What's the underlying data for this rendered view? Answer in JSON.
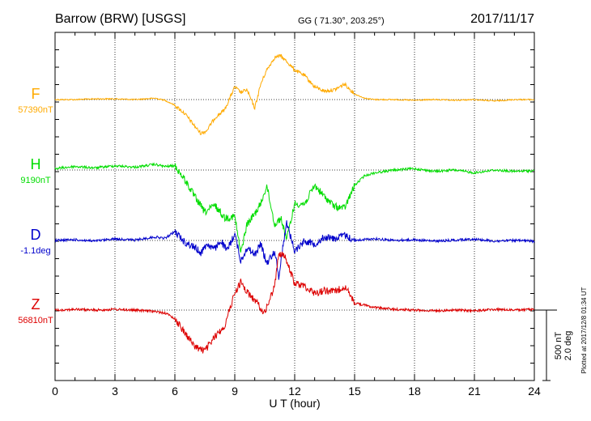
{
  "header": {
    "station": "Barrow (BRW)  [USGS]",
    "coords": "GG ( 71.30°, 203.25°)",
    "date": "2017/11/17"
  },
  "side_note": "Plotted at 2017/12/8 01:34  UT",
  "scale": {
    "line1": "500 nT",
    "line2": "2.0 deg"
  },
  "colors": {
    "F": "#ffaa00",
    "H": "#00dd00",
    "D": "#0000cc",
    "Z": "#dd0000"
  },
  "chart_data": {
    "type": "line",
    "xlabel": "U T (hour)",
    "xlim": [
      0,
      24
    ],
    "xticks": [
      "0",
      "3",
      "6",
      "9",
      "12",
      "15",
      "18",
      "21",
      "24"
    ],
    "grid": true,
    "series": [
      {
        "name": "F",
        "baseline_label": "57390nT",
        "unit": "nT",
        "x": [
          0,
          1,
          2,
          3,
          4,
          5,
          5.5,
          6,
          6.5,
          7,
          7.3,
          7.6,
          8,
          8.5,
          9,
          9.3,
          9.6,
          10,
          10.3,
          10.6,
          11,
          11.3,
          11.6,
          12,
          12.5,
          13,
          13.5,
          14,
          14.5,
          15,
          15.5,
          16,
          17,
          18,
          19,
          20,
          21,
          22,
          23,
          24
        ],
        "y": [
          57390,
          57390,
          57395,
          57395,
          57390,
          57400,
          57385,
          57350,
          57290,
          57200,
          57150,
          57170,
          57260,
          57320,
          57480,
          57440,
          57460,
          57330,
          57500,
          57600,
          57690,
          57700,
          57660,
          57600,
          57560,
          57480,
          57450,
          57460,
          57500,
          57430,
          57400,
          57390,
          57390,
          57385,
          57390,
          57385,
          57390,
          57380,
          57390,
          57390
        ]
      },
      {
        "name": "H",
        "baseline_label": "9190nT",
        "unit": "nT",
        "x": [
          0,
          1,
          2,
          3,
          4,
          5,
          5.5,
          6,
          6.5,
          7,
          7.5,
          8,
          8.5,
          9,
          9.3,
          9.6,
          10,
          10.3,
          10.6,
          11,
          11.3,
          11.6,
          12,
          12.5,
          13,
          13.5,
          14,
          14.5,
          15,
          15.5,
          16,
          17,
          18,
          19,
          20,
          21,
          22,
          23,
          24
        ],
        "y": [
          9200,
          9215,
          9205,
          9220,
          9210,
          9230,
          9215,
          9220,
          9120,
          9000,
          8890,
          8940,
          8850,
          8860,
          8600,
          8800,
          8880,
          8950,
          9080,
          8800,
          8850,
          8700,
          8950,
          8950,
          9080,
          9000,
          8930,
          8920,
          9080,
          9150,
          9170,
          9190,
          9200,
          9180,
          9190,
          9170,
          9190,
          9180,
          9185
        ]
      },
      {
        "name": "D",
        "baseline_label": "-1.1deg",
        "unit": "deg",
        "x": [
          0,
          1,
          2,
          3,
          4,
          5,
          5.5,
          6,
          6.5,
          7,
          7.3,
          7.6,
          8,
          8.3,
          8.6,
          9,
          9.3,
          9.6,
          10,
          10.3,
          10.6,
          11,
          11.2,
          11.4,
          11.6,
          12,
          12.5,
          13,
          13.5,
          14,
          14.5,
          15,
          16,
          17,
          18,
          19,
          20,
          21,
          22,
          23,
          24
        ],
        "y": [
          -1.1,
          -1.08,
          -1.12,
          -1.05,
          -1.09,
          -1.0,
          -1.04,
          -0.85,
          -1.15,
          -1.3,
          -1.45,
          -1.2,
          -1.35,
          -1.1,
          -1.4,
          -0.9,
          -1.7,
          -1.3,
          -1.5,
          -1.2,
          -1.75,
          -1.4,
          -2.15,
          -1.3,
          -0.6,
          -1.4,
          -1.1,
          -1.2,
          -1.0,
          -1.05,
          -0.95,
          -1.1,
          -1.05,
          -1.1,
          -1.08,
          -1.12,
          -1.09,
          -1.06,
          -1.12,
          -1.1,
          -1.12
        ]
      },
      {
        "name": "Z",
        "baseline_label": "56810nT",
        "unit": "nT",
        "x": [
          0,
          1,
          2,
          3,
          4,
          5,
          5.5,
          6,
          6.5,
          7,
          7.5,
          8,
          8.5,
          9,
          9.3,
          9.6,
          10,
          10.5,
          11,
          11.2,
          11.5,
          12,
          12.5,
          13,
          13.5,
          14,
          14.5,
          15,
          16,
          17,
          18,
          19,
          20,
          21,
          22,
          23,
          24
        ],
        "y": [
          56810,
          56815,
          56810,
          56815,
          56810,
          56800,
          56790,
          56750,
          56650,
          56550,
          56520,
          56620,
          56700,
          56930,
          57010,
          56940,
          56880,
          56790,
          56980,
          57220,
          57190,
          57000,
          56980,
          56930,
          56950,
          56940,
          56980,
          56860,
          56830,
          56815,
          56810,
          56805,
          56810,
          56805,
          56815,
          56810,
          56815
        ]
      }
    ]
  }
}
